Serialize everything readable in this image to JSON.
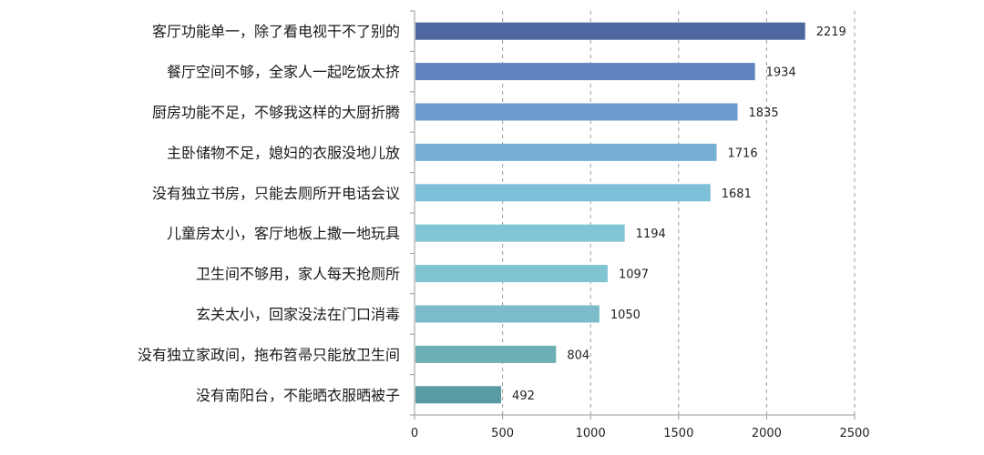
{
  "chart_data": {
    "type": "bar",
    "orientation": "horizontal",
    "categories": [
      "客厅功能单一，除了看电视干不了别的",
      "餐厅空间不够，全家人一起吃饭太挤",
      "厨房功能不足，不够我这样的大厨折腾",
      "主卧储物不足，媳妇的衣服没地儿放",
      "没有独立书房，只能去厕所开电话会议",
      "儿童房太小，客厅地板上撒一地玩具",
      "卫生间不够用，家人每天抢厕所",
      "玄关太小，回家没法在门口消毒",
      "没有独立家政间，拖布笤帚只能放卫生间",
      "没有南阳台，不能晒衣服晒被子"
    ],
    "values": [
      2219,
      1934,
      1835,
      1716,
      1681,
      1194,
      1097,
      1050,
      804,
      492
    ],
    "value_labels": [
      "2219",
      "1934",
      "1835",
      "1716",
      "1681",
      "1194",
      "1097",
      "1050",
      "804",
      "492"
    ],
    "xlim": [
      0,
      2500
    ],
    "xticks": [
      "0",
      "500",
      "1000",
      "1500",
      "2000",
      "2500"
    ],
    "grid": "vertical dashed",
    "colors": [
      "#4f67a1",
      "#5f83bd",
      "#6f9bd0",
      "#76b0d6",
      "#7dbfd8",
      "#80c6d6",
      "#80c4d1",
      "#7cbcca",
      "#6eaeb5",
      "#5a9ba3"
    ]
  }
}
